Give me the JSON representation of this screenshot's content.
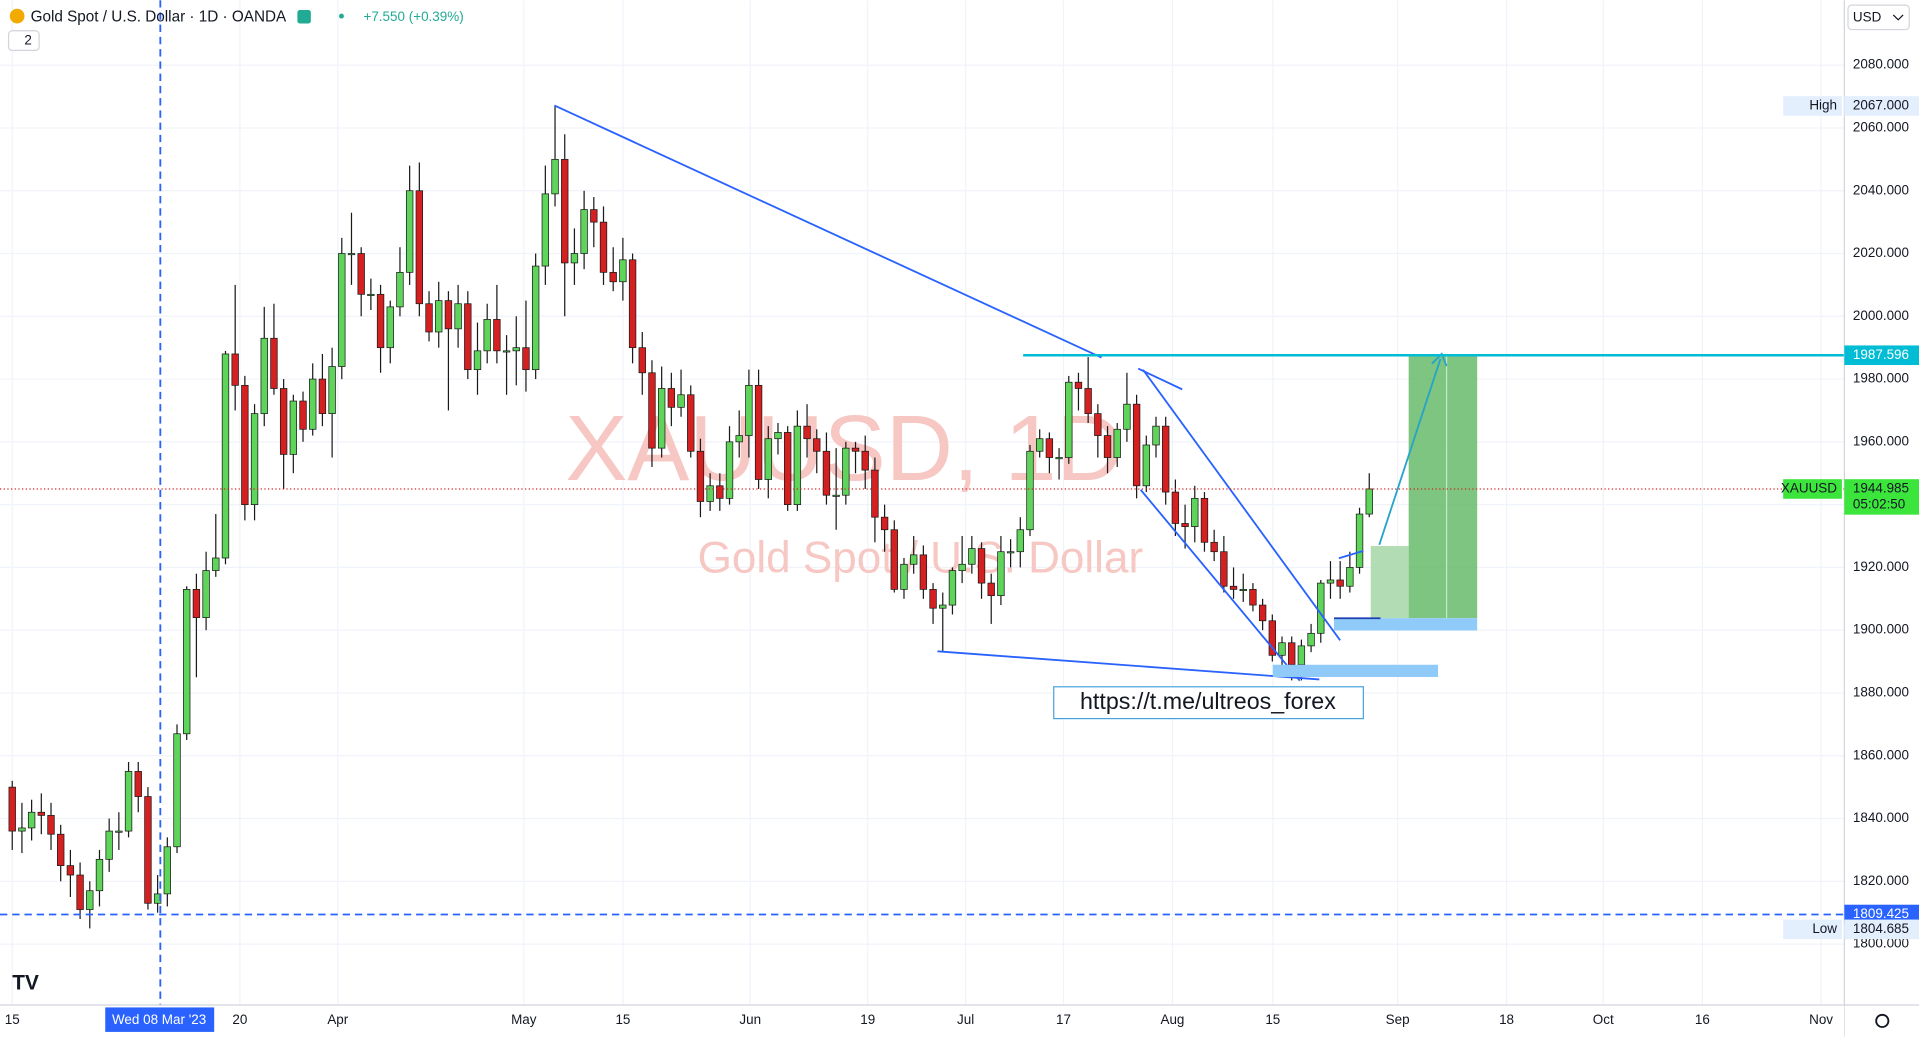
{
  "header": {
    "symbol": "Gold Spot / U.S. Dollar · 1D · OANDA",
    "change": "+7.550 (+0.39%)",
    "indicator_count": "2",
    "currency": "USD"
  },
  "watermark": {
    "symbol": "XAUUSD, 1D",
    "name": "Gold Spot / U.S. Dollar"
  },
  "annotation": "https://t.me/ultreos_forex",
  "crosshair_date": "Wed 08 Mar '23",
  "chart_data": {
    "type": "candlestick",
    "ylim": [
      1780.6,
      2100.7
    ],
    "yticks": [
      {
        "value": 1800,
        "label": "1800.000"
      },
      {
        "value": 1820,
        "label": "1820.000"
      },
      {
        "value": 1840,
        "label": "1840.000"
      },
      {
        "value": 1860,
        "label": "1860.000"
      },
      {
        "value": 1880,
        "label": "1880.000"
      },
      {
        "value": 1900,
        "label": "1900.000"
      },
      {
        "value": 1920,
        "label": "1920.000"
      },
      {
        "value": 1940,
        "label": "1940.000"
      },
      {
        "value": 1960,
        "label": "1960.000"
      },
      {
        "value": 1980,
        "label": "1980.000"
      },
      {
        "value": 2000,
        "label": "2000.000"
      },
      {
        "value": 2020,
        "label": "2020.000"
      },
      {
        "value": 2040,
        "label": "2040.000"
      },
      {
        "value": 2060,
        "label": "2060.000"
      },
      {
        "value": 2080,
        "label": "2080.000"
      }
    ],
    "xticks": [
      "15",
      "20",
      "Apr",
      "May",
      "15",
      "Jun",
      "19",
      "Jul",
      "17",
      "Aug",
      "15",
      "Sep",
      "18",
      "Oct",
      "16",
      "Nov"
    ],
    "grid": true,
    "up_color": "#5ed45a",
    "down_color": "#d42020",
    "candles": [
      [
        1850,
        1852,
        1830,
        1836
      ],
      [
        1836,
        1845,
        1829,
        1837
      ],
      [
        1837,
        1846,
        1833,
        1842
      ],
      [
        1842,
        1848,
        1835,
        1841
      ],
      [
        1841,
        1845,
        1830,
        1835
      ],
      [
        1835,
        1838,
        1820,
        1825
      ],
      [
        1825,
        1830,
        1815,
        1822
      ],
      [
        1822,
        1826,
        1808,
        1811
      ],
      [
        1811,
        1820,
        1805,
        1817
      ],
      [
        1817,
        1830,
        1812,
        1827
      ],
      [
        1827,
        1840,
        1823,
        1836
      ],
      [
        1836,
        1842,
        1830,
        1836
      ],
      [
        1836,
        1858,
        1834,
        1855
      ],
      [
        1855,
        1858,
        1842,
        1847
      ],
      [
        1847,
        1850,
        1811,
        1813
      ],
      [
        1813,
        1822,
        1810,
        1816
      ],
      [
        1816,
        1834,
        1812,
        1831
      ],
      [
        1831,
        1870,
        1829,
        1867
      ],
      [
        1867,
        1914,
        1865,
        1913
      ],
      [
        1913,
        1918,
        1885,
        1904
      ],
      [
        1904,
        1925,
        1900,
        1919
      ],
      [
        1919,
        1937,
        1917,
        1923
      ],
      [
        1923,
        1989,
        1921,
        1988
      ],
      [
        1988,
        2010,
        1970,
        1978
      ],
      [
        1978,
        1981,
        1935,
        1940
      ],
      [
        1940,
        1972,
        1935,
        1969
      ],
      [
        1969,
        2003,
        1965,
        1993
      ],
      [
        1993,
        2004,
        1975,
        1977
      ],
      [
        1977,
        1980,
        1945,
        1956
      ],
      [
        1956,
        1975,
        1950,
        1973
      ],
      [
        1973,
        1976,
        1960,
        1964
      ],
      [
        1964,
        1985,
        1962,
        1980
      ],
      [
        1980,
        1988,
        1965,
        1969
      ],
      [
        1969,
        1990,
        1955,
        1984
      ],
      [
        1984,
        2025,
        1980,
        2020
      ],
      [
        2020,
        2033,
        2010,
        2020
      ],
      [
        2020,
        2022,
        2000,
        2007
      ],
      [
        2007,
        2012,
        2002,
        2007
      ],
      [
        2007,
        2010,
        1982,
        1990
      ],
      [
        1990,
        2005,
        1985,
        2003
      ],
      [
        2003,
        2022,
        2000,
        2014
      ],
      [
        2014,
        2048,
        2010,
        2040
      ],
      [
        2040,
        2049,
        2000,
        2004
      ],
      [
        2004,
        2008,
        1992,
        1995
      ],
      [
        1995,
        2011,
        1990,
        2005
      ],
      [
        2005,
        2008,
        1970,
        1996
      ],
      [
        1996,
        2010,
        1990,
        2004
      ],
      [
        2004,
        2008,
        1980,
        1983
      ],
      [
        1983,
        1998,
        1975,
        1989
      ],
      [
        1989,
        2004,
        1985,
        1999
      ],
      [
        1999,
        2010,
        1985,
        1989
      ],
      [
        1989,
        1994,
        1975,
        1989
      ],
      [
        1989,
        2000,
        1978,
        1990
      ],
      [
        1990,
        2005,
        1976,
        1983
      ],
      [
        1983,
        2020,
        1980,
        2016
      ],
      [
        2016,
        2048,
        2010,
        2039
      ],
      [
        2039,
        2067,
        2035,
        2050
      ],
      [
        2050,
        2058,
        2000,
        2017
      ],
      [
        2017,
        2028,
        2010,
        2020
      ],
      [
        2020,
        2040,
        2015,
        2034
      ],
      [
        2034,
        2038,
        2022,
        2030
      ],
      [
        2030,
        2035,
        2010,
        2014
      ],
      [
        2014,
        2022,
        2008,
        2011
      ],
      [
        2011,
        2025,
        2005,
        2018
      ],
      [
        2018,
        2020,
        1985,
        1990
      ],
      [
        1990,
        1995,
        1975,
        1982
      ],
      [
        1982,
        1986,
        1952,
        1958
      ],
      [
        1958,
        1984,
        1955,
        1977
      ],
      [
        1977,
        1982,
        1965,
        1971
      ],
      [
        1971,
        1983,
        1968,
        1975
      ],
      [
        1975,
        1978,
        1955,
        1957
      ],
      [
        1957,
        1961,
        1936,
        1941
      ],
      [
        1941,
        1950,
        1938,
        1946
      ],
      [
        1946,
        1950,
        1938,
        1942
      ],
      [
        1942,
        1965,
        1940,
        1960
      ],
      [
        1960,
        1970,
        1955,
        1962
      ],
      [
        1962,
        1983,
        1955,
        1978
      ],
      [
        1978,
        1983,
        1945,
        1948
      ],
      [
        1948,
        1965,
        1942,
        1961
      ],
      [
        1961,
        1966,
        1956,
        1963
      ],
      [
        1963,
        1965,
        1938,
        1940
      ],
      [
        1940,
        1970,
        1938,
        1965
      ],
      [
        1965,
        1972,
        1955,
        1961
      ],
      [
        1961,
        1964,
        1950,
        1957
      ],
      [
        1957,
        1963,
        1940,
        1943
      ],
      [
        1943,
        1958,
        1932,
        1943
      ],
      [
        1943,
        1960,
        1940,
        1958
      ],
      [
        1958,
        1960,
        1950,
        1957
      ],
      [
        1957,
        1962,
        1945,
        1951
      ],
      [
        1951,
        1955,
        1928,
        1936
      ],
      [
        1936,
        1940,
        1925,
        1932
      ],
      [
        1932,
        1935,
        1912,
        1913
      ],
      [
        1913,
        1923,
        1910,
        1921
      ],
      [
        1921,
        1930,
        1918,
        1924
      ],
      [
        1924,
        1927,
        1910,
        1913
      ],
      [
        1913,
        1915,
        1902,
        1907
      ],
      [
        1907,
        1912,
        1893,
        1908
      ],
      [
        1908,
        1920,
        1905,
        1919
      ],
      [
        1919,
        1930,
        1915,
        1921
      ],
      [
        1921,
        1930,
        1918,
        1926
      ],
      [
        1926,
        1928,
        1910,
        1915
      ],
      [
        1915,
        1918,
        1902,
        1911
      ],
      [
        1911,
        1930,
        1908,
        1925
      ],
      [
        1925,
        1929,
        1920,
        1925
      ],
      [
        1925,
        1936,
        1920,
        1932
      ],
      [
        1932,
        1959,
        1930,
        1957
      ],
      [
        1957,
        1964,
        1955,
        1961
      ],
      [
        1961,
        1963,
        1950,
        1955
      ],
      [
        1955,
        1958,
        1948,
        1955
      ],
      [
        1955,
        1981,
        1953,
        1979
      ],
      [
        1979,
        1982,
        1970,
        1977
      ],
      [
        1977,
        1987,
        1966,
        1969
      ],
      [
        1969,
        1972,
        1955,
        1962
      ],
      [
        1962,
        1965,
        1950,
        1955
      ],
      [
        1955,
        1966,
        1952,
        1964
      ],
      [
        1964,
        1982,
        1960,
        1972
      ],
      [
        1972,
        1975,
        1942,
        1946
      ],
      [
        1946,
        1962,
        1944,
        1959
      ],
      [
        1959,
        1968,
        1955,
        1965
      ],
      [
        1965,
        1968,
        1940,
        1944
      ],
      [
        1944,
        1948,
        1930,
        1934
      ],
      [
        1934,
        1940,
        1926,
        1933
      ],
      [
        1933,
        1946,
        1928,
        1942
      ],
      [
        1942,
        1944,
        1925,
        1928
      ],
      [
        1928,
        1932,
        1922,
        1925
      ],
      [
        1925,
        1930,
        1912,
        1914
      ],
      [
        1914,
        1920,
        1910,
        1913
      ],
      [
        1913,
        1918,
        1909,
        1913
      ],
      [
        1913,
        1915,
        1906,
        1908
      ],
      [
        1908,
        1910,
        1900,
        1903
      ],
      [
        1903,
        1905,
        1890,
        1892
      ],
      [
        1892,
        1898,
        1888,
        1896
      ],
      [
        1896,
        1898,
        1884,
        1889
      ],
      [
        1889,
        1897,
        1884,
        1895
      ],
      [
        1895,
        1902,
        1893,
        1899
      ],
      [
        1899,
        1916,
        1896,
        1915
      ],
      [
        1915,
        1922,
        1910,
        1916
      ],
      [
        1916,
        1922,
        1910,
        1914
      ],
      [
        1914,
        1925,
        1912,
        1920
      ],
      [
        1920,
        1939,
        1918,
        1937
      ],
      [
        1937,
        1950,
        1936,
        1945
      ]
    ],
    "price_labels": {
      "high": {
        "tag": "High",
        "value": 2067,
        "label": "2067.000"
      },
      "resistance": {
        "value": 1987.596,
        "label": "1987.596"
      },
      "last": {
        "tag": "XAUUSD",
        "value": 1944.985,
        "label": "1944.985",
        "countdown": "05:02:50"
      },
      "crosshair": {
        "value": 1809.425,
        "label": "1809.425"
      },
      "low": {
        "tag": "Low",
        "value": 1804.685,
        "label": "1804.685"
      }
    }
  }
}
